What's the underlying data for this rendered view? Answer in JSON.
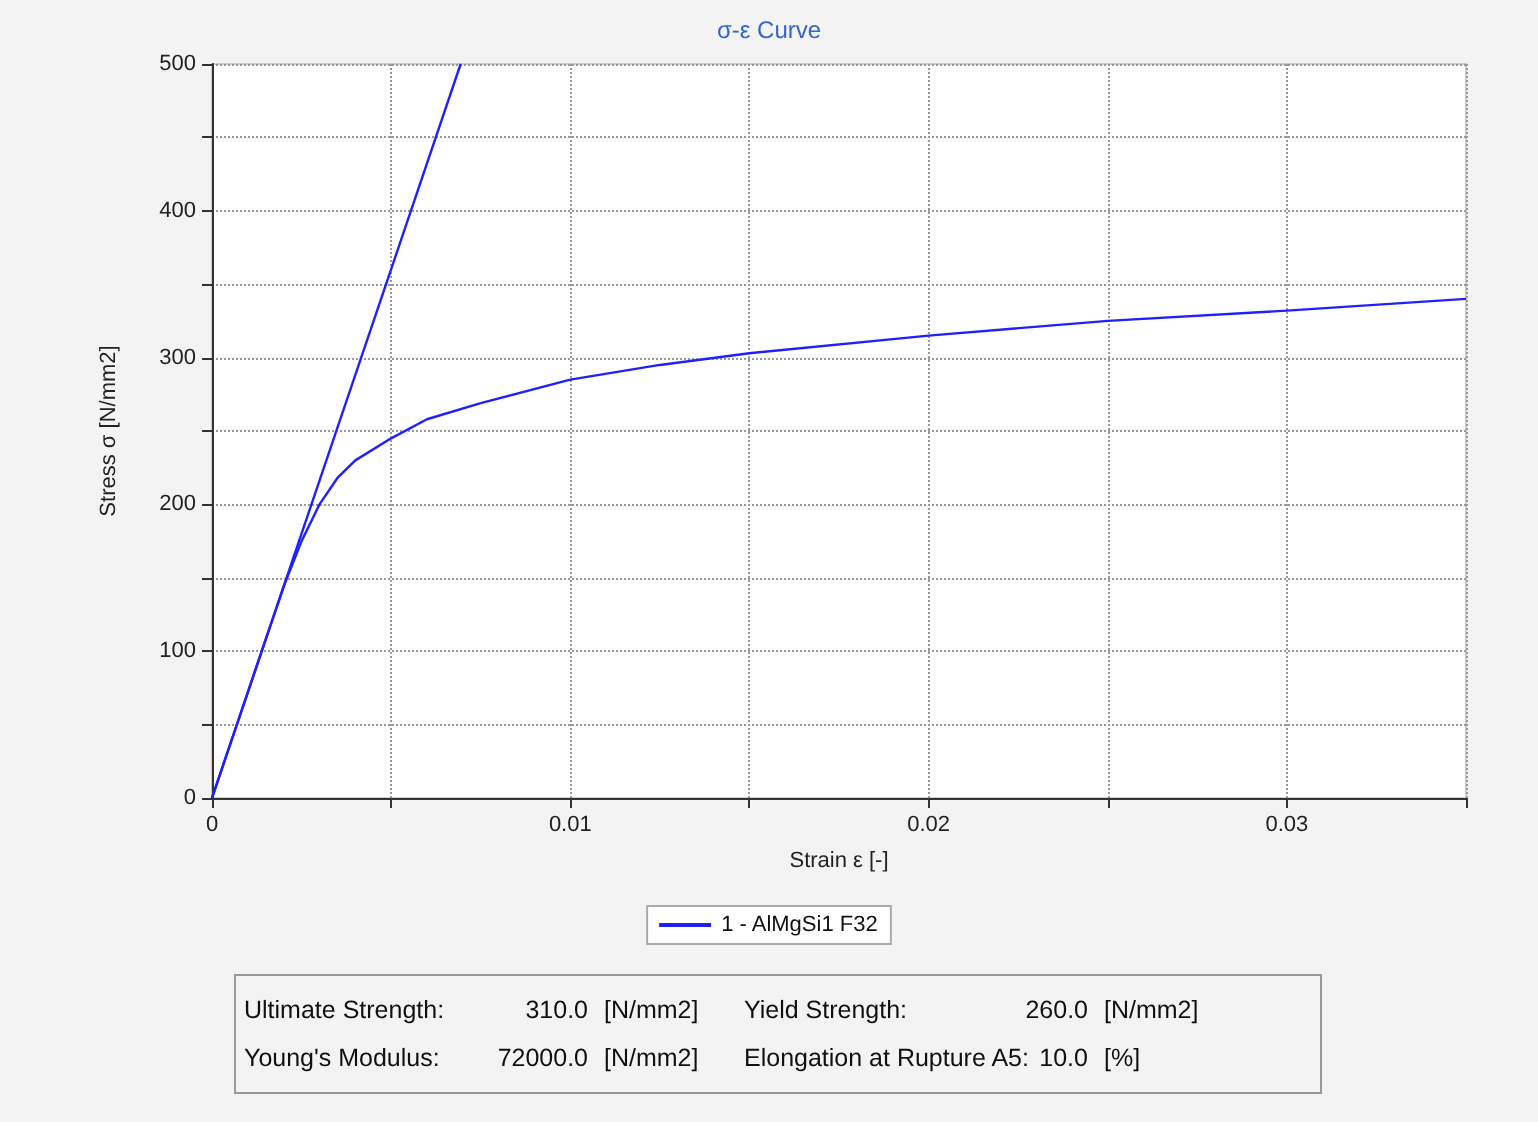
{
  "chart_data": {
    "type": "line",
    "title": "σ-ε Curve",
    "xlabel": "Strain ε [-]",
    "ylabel": "Stress σ [N/mm2]",
    "xlim": [
      0,
      0.035
    ],
    "xticks": [
      0,
      {
        "value": 0.005,
        "label": null
      },
      0.01,
      {
        "value": 0.015,
        "label": null
      },
      0.02,
      {
        "value": 0.025,
        "label": null
      },
      0.03,
      {
        "value": 0.035,
        "label": null
      }
    ],
    "ylim": [
      0,
      500
    ],
    "yticks": [
      0,
      {
        "value": 50,
        "label": null
      },
      100,
      {
        "value": 150,
        "label": null
      },
      200,
      {
        "value": 250,
        "label": null
      },
      300,
      {
        "value": 350,
        "label": null
      },
      400,
      {
        "value": 450,
        "label": null
      },
      500
    ],
    "grid": true,
    "legend": "bottom",
    "marker": "none",
    "line_style": "solid",
    "series": [
      {
        "name": "1 - AlMgSi1 F32",
        "color": "#2020ff",
        "x": [
          0,
          0.001,
          0.002,
          0.0025,
          0.003,
          0.0035,
          0.004,
          0.005,
          0.006,
          0.0075,
          0.01,
          0.0125,
          0.015,
          0.02,
          0.025,
          0.03,
          0.035
        ],
        "values": [
          0,
          72,
          144,
          175,
          200,
          218,
          230,
          245,
          258,
          269,
          285,
          295,
          303,
          315,
          325,
          332,
          340
        ]
      },
      {
        "color": "#2020ff",
        "x": [
          0,
          0.00694
        ],
        "values": [
          0,
          500
        ]
      }
    ],
    "annotations": [
      "Ultimate Strength:",
      "310.0",
      "[N/mm2]",
      "Yield Strength:",
      "260.0",
      "[N/mm2]",
      "Young's Modulus:",
      "72000.0",
      "[N/mm2]",
      "Elongation at Rupture A5:",
      "10.0",
      "[%]"
    ]
  }
}
